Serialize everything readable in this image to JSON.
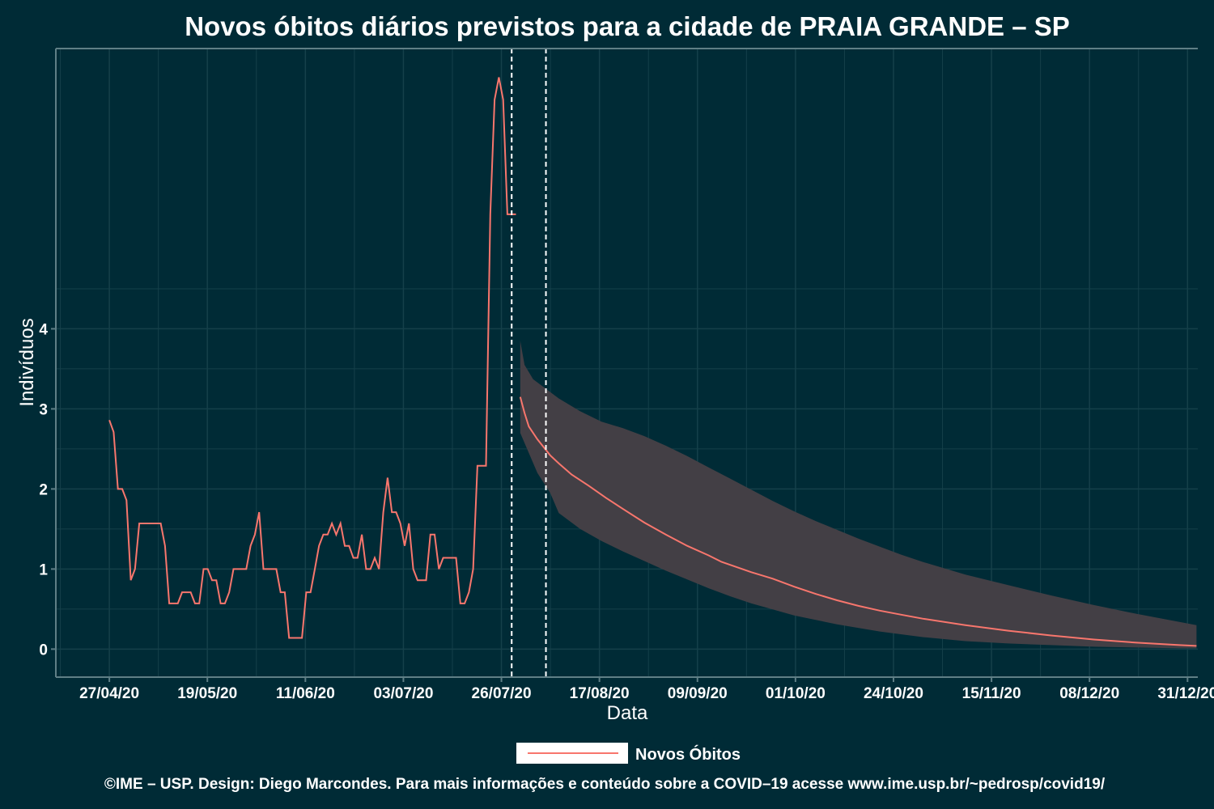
{
  "chart_data": {
    "type": "line",
    "title": "Novos óbitos diários previstos para a cidade de PRAIA GRANDE – SP",
    "xlabel": "Data",
    "ylabel": "Indivíduos",
    "x_tick_labels": [
      "27/04/20",
      "19/05/20",
      "11/06/20",
      "03/07/20",
      "26/07/20",
      "17/08/20",
      "09/09/20",
      "01/10/20",
      "24/10/20",
      "15/11/20",
      "08/12/20",
      "31/12/20"
    ],
    "y_ticks": [
      0,
      1,
      2,
      3,
      4
    ],
    "ylim": [
      -0.35,
      7.5
    ],
    "x_start_date": "2020-04-27",
    "x_range_days": [
      -12.5,
      254.3
    ],
    "vlines_days": [
      94,
      102
    ],
    "grid": true,
    "legend": {
      "position": "bottom",
      "entries": [
        "Novos Óbitos"
      ]
    },
    "series": [
      {
        "name": "Novos Óbitos",
        "color": "#f8766d",
        "observed": [
          [
            0,
            2.86
          ],
          [
            1,
            2.71
          ],
          [
            2,
            2.0
          ],
          [
            3,
            2.0
          ],
          [
            4,
            1.86
          ],
          [
            5,
            0.86
          ],
          [
            6,
            1.0
          ],
          [
            7,
            1.57
          ],
          [
            8,
            1.57
          ],
          [
            9,
            1.57
          ],
          [
            10,
            1.57
          ],
          [
            11,
            1.57
          ],
          [
            12,
            1.57
          ],
          [
            13,
            1.29
          ],
          [
            14,
            0.57
          ],
          [
            15,
            0.57
          ],
          [
            16,
            0.57
          ],
          [
            17,
            0.71
          ],
          [
            18,
            0.71
          ],
          [
            19,
            0.71
          ],
          [
            20,
            0.57
          ],
          [
            21,
            0.57
          ],
          [
            22,
            1.0
          ],
          [
            23,
            1.0
          ],
          [
            24,
            0.86
          ],
          [
            25,
            0.86
          ],
          [
            26,
            0.57
          ],
          [
            27,
            0.57
          ],
          [
            28,
            0.71
          ],
          [
            29,
            1.0
          ],
          [
            30,
            1.0
          ],
          [
            31,
            1.0
          ],
          [
            32,
            1.0
          ],
          [
            33,
            1.29
          ],
          [
            34,
            1.43
          ],
          [
            35,
            1.71
          ],
          [
            36,
            1.0
          ],
          [
            37,
            1.0
          ],
          [
            38,
            1.0
          ],
          [
            39,
            1.0
          ],
          [
            40,
            0.71
          ],
          [
            41,
            0.71
          ],
          [
            42,
            0.14
          ],
          [
            43,
            0.14
          ],
          [
            44,
            0.14
          ],
          [
            45,
            0.14
          ],
          [
            46,
            0.71
          ],
          [
            47,
            0.71
          ],
          [
            48,
            1.0
          ],
          [
            49,
            1.29
          ],
          [
            50,
            1.43
          ],
          [
            51,
            1.43
          ],
          [
            52,
            1.57
          ],
          [
            53,
            1.43
          ],
          [
            54,
            1.57
          ],
          [
            55,
            1.29
          ],
          [
            56,
            1.29
          ],
          [
            57,
            1.14
          ],
          [
            58,
            1.14
          ],
          [
            59,
            1.43
          ],
          [
            60,
            1.0
          ],
          [
            61,
            1.0
          ],
          [
            62,
            1.14
          ],
          [
            63,
            1.0
          ],
          [
            64,
            1.71
          ],
          [
            65,
            2.14
          ],
          [
            66,
            1.71
          ],
          [
            67,
            1.71
          ],
          [
            68,
            1.57
          ],
          [
            69,
            1.29
          ],
          [
            70,
            1.57
          ],
          [
            71,
            1.0
          ],
          [
            72,
            0.86
          ],
          [
            73,
            0.86
          ],
          [
            74,
            0.86
          ],
          [
            75,
            1.43
          ],
          [
            76,
            1.43
          ],
          [
            77,
            1.0
          ],
          [
            78,
            1.14
          ],
          [
            79,
            1.14
          ],
          [
            80,
            1.14
          ],
          [
            81,
            1.14
          ],
          [
            82,
            0.57
          ],
          [
            83,
            0.57
          ],
          [
            84,
            0.71
          ],
          [
            85,
            1.0
          ],
          [
            86,
            2.29
          ],
          [
            87,
            2.29
          ],
          [
            88,
            2.29
          ],
          [
            89,
            5.43
          ],
          [
            90,
            6.86
          ],
          [
            91,
            7.14
          ],
          [
            92,
            6.86
          ],
          [
            93,
            5.43
          ],
          [
            94,
            5.43
          ],
          [
            95,
            5.43
          ]
        ],
        "forecast": [
          [
            96,
            3.15
          ],
          [
            97,
            2.95
          ],
          [
            98,
            2.78
          ],
          [
            100,
            2.62
          ],
          [
            103,
            2.42
          ],
          [
            105,
            2.32
          ],
          [
            108,
            2.18
          ],
          [
            112,
            2.04
          ],
          [
            116,
            1.89
          ],
          [
            120,
            1.75
          ],
          [
            125,
            1.58
          ],
          [
            130,
            1.43
          ],
          [
            135,
            1.29
          ],
          [
            140,
            1.17
          ],
          [
            143,
            1.09
          ],
          [
            150,
            0.96
          ],
          [
            155,
            0.88
          ],
          [
            160,
            0.78
          ],
          [
            165,
            0.69
          ],
          [
            170,
            0.61
          ],
          [
            175,
            0.54
          ],
          [
            180,
            0.48
          ],
          [
            185,
            0.43
          ],
          [
            190,
            0.38
          ],
          [
            200,
            0.3
          ],
          [
            210,
            0.23
          ],
          [
            220,
            0.17
          ],
          [
            230,
            0.12
          ],
          [
            240,
            0.08
          ],
          [
            250,
            0.05
          ],
          [
            254,
            0.04
          ]
        ],
        "forecast_lower": [
          [
            96,
            2.7
          ],
          [
            98,
            2.45
          ],
          [
            100,
            2.2
          ],
          [
            103,
            1.95
          ],
          [
            105,
            1.7
          ],
          [
            110,
            1.5
          ],
          [
            115,
            1.35
          ],
          [
            120,
            1.22
          ],
          [
            125,
            1.1
          ],
          [
            130,
            0.98
          ],
          [
            135,
            0.87
          ],
          [
            140,
            0.76
          ],
          [
            145,
            0.66
          ],
          [
            150,
            0.57
          ],
          [
            160,
            0.42
          ],
          [
            170,
            0.31
          ],
          [
            180,
            0.22
          ],
          [
            190,
            0.15
          ],
          [
            200,
            0.1
          ],
          [
            210,
            0.07
          ],
          [
            220,
            0.05
          ],
          [
            230,
            0.03
          ],
          [
            240,
            0.02
          ],
          [
            250,
            0.01
          ],
          [
            254,
            0.01
          ]
        ],
        "forecast_upper": [
          [
            96,
            3.85
          ],
          [
            97,
            3.55
          ],
          [
            99,
            3.37
          ],
          [
            105,
            3.13
          ],
          [
            110,
            2.97
          ],
          [
            115,
            2.84
          ],
          [
            120,
            2.76
          ],
          [
            125,
            2.66
          ],
          [
            130,
            2.54
          ],
          [
            135,
            2.41
          ],
          [
            140,
            2.27
          ],
          [
            145,
            2.13
          ],
          [
            150,
            1.99
          ],
          [
            155,
            1.85
          ],
          [
            160,
            1.72
          ],
          [
            165,
            1.6
          ],
          [
            170,
            1.49
          ],
          [
            175,
            1.38
          ],
          [
            180,
            1.28
          ],
          [
            185,
            1.18
          ],
          [
            190,
            1.09
          ],
          [
            195,
            1.01
          ],
          [
            200,
            0.93
          ],
          [
            210,
            0.8
          ],
          [
            220,
            0.67
          ],
          [
            230,
            0.55
          ],
          [
            240,
            0.44
          ],
          [
            250,
            0.34
          ],
          [
            254,
            0.3
          ]
        ]
      }
    ]
  },
  "caption": "©IME – USP. Design: Diego Marcondes. Para mais informações e conteúdo sobre a COVID–19 acesse www.ime.usp.br/~pedrosp/covid19/",
  "colors": {
    "background": "#002b36",
    "line": "#f8766d",
    "band": "#433f45",
    "axis": "#5f7f86",
    "grid": "#15404a"
  }
}
